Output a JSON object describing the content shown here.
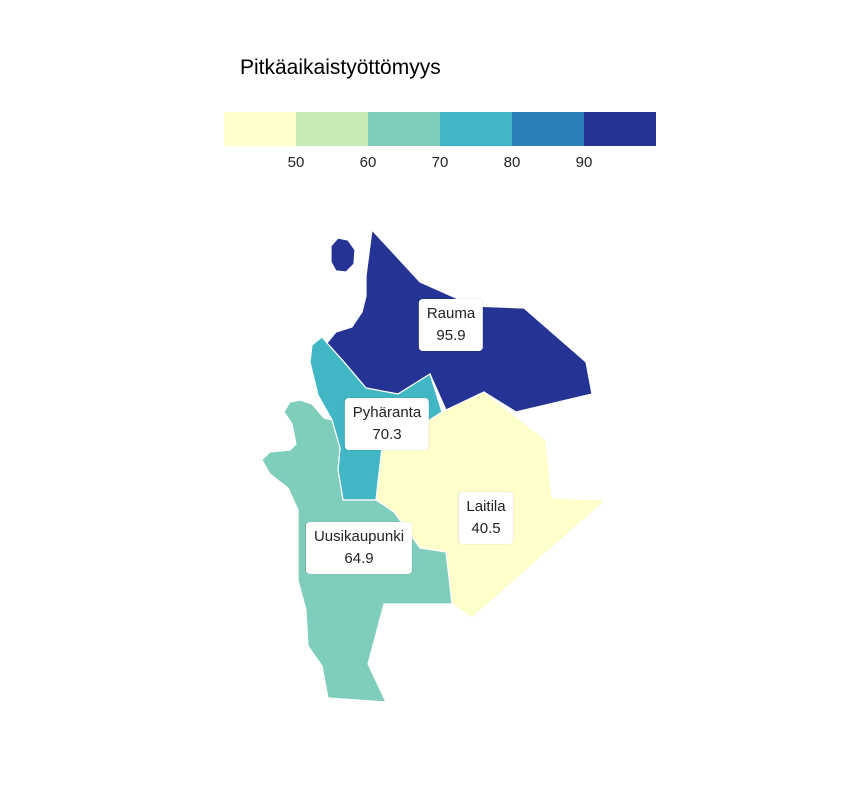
{
  "legend": {
    "title": "Pitkäaikaistyöttömyys",
    "bins": [
      {
        "color": "#ffffcc"
      },
      {
        "color": "#c7e9b4"
      },
      {
        "color": "#7fcdbb"
      },
      {
        "color": "#41b6c4"
      },
      {
        "color": "#2c7fb8"
      },
      {
        "color": "#253494"
      }
    ],
    "ticks": [
      "50",
      "60",
      "70",
      "80",
      "90"
    ]
  },
  "regions": [
    {
      "name": "Rauma",
      "value": "95.9",
      "color": "#253494"
    },
    {
      "name": "Pyhäranta",
      "value": "70.3",
      "color": "#41b6c4"
    },
    {
      "name": "Laitila",
      "value": "40.5",
      "color": "#ffffcc"
    },
    {
      "name": "Uusikaupunki",
      "value": "64.9",
      "color": "#7fcdbb"
    }
  ]
}
